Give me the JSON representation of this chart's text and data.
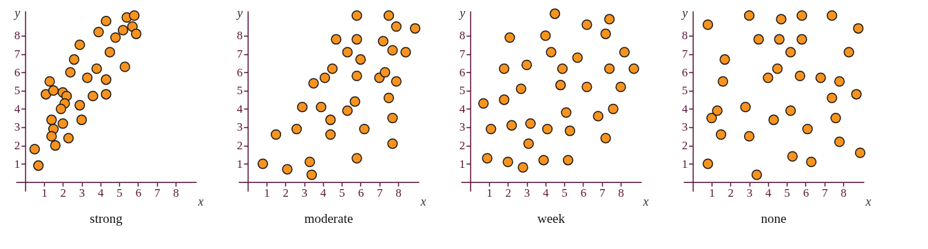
{
  "chart_data": [
    {
      "type": "scatter",
      "title": "strong",
      "xlabel": "x",
      "ylabel": "y",
      "color": "#f7931e",
      "marker": "circle",
      "xlim": [
        -0.5,
        9.1
      ],
      "ylim": [
        -0.5,
        9.35
      ],
      "xticks": [
        1,
        2,
        3,
        4,
        5,
        6,
        7,
        8
      ],
      "yticks": [
        1,
        2,
        3,
        4,
        5,
        6,
        7,
        8
      ],
      "x": [
        0.5,
        0.7,
        1.1,
        1.3,
        1.5,
        1.4,
        1.5,
        1.4,
        1.6,
        2.0,
        2.2,
        2.1,
        1.9,
        2.0,
        2.3,
        2.4,
        2.6,
        2.9,
        2.9,
        3.0,
        3.3,
        3.6,
        3.8,
        3.9,
        4.3,
        4.3,
        4.3,
        4.5,
        4.8,
        5.2,
        5.3,
        5.4,
        5.8,
        5.7,
        5.9
      ],
      "values": [
        1.8,
        0.9,
        4.8,
        5.5,
        5.0,
        3.4,
        2.9,
        2.5,
        2.0,
        4.9,
        4.7,
        4.3,
        4.0,
        3.2,
        2.4,
        6.0,
        6.7,
        7.5,
        4.2,
        3.4,
        5.7,
        4.7,
        6.2,
        8.2,
        8.8,
        5.6,
        4.8,
        7.1,
        7.9,
        8.3,
        6.3,
        9.0,
        9.1,
        8.5,
        8.1
      ]
    },
    {
      "type": "scatter",
      "title": "moderate",
      "xlabel": "x",
      "ylabel": "y",
      "color": "#f7931e",
      "marker": "circle",
      "xlim": [
        -0.5,
        9.1
      ],
      "ylim": [
        -0.5,
        9.35
      ],
      "xticks": [
        1,
        2,
        3,
        4,
        5,
        6,
        7,
        8
      ],
      "yticks": [
        1,
        2,
        3,
        4,
        5,
        6,
        7,
        8
      ],
      "x": [
        0.8,
        1.5,
        2.1,
        2.6,
        2.9,
        3.3,
        3.4,
        3.5,
        4.1,
        3.9,
        4.4,
        4.4,
        4.5,
        4.7,
        5.3,
        5.3,
        5.7,
        5.8,
        5.8,
        5.8,
        6.0,
        5.8,
        6.2,
        7.0,
        7.3,
        7.2,
        7.5,
        7.7,
        7.5,
        7.9,
        7.9,
        7.7,
        7.7,
        8.4,
        8.9
      ],
      "values": [
        1.0,
        2.6,
        0.7,
        2.9,
        4.1,
        1.1,
        0.4,
        5.4,
        5.7,
        4.1,
        3.4,
        2.6,
        6.2,
        7.8,
        3.9,
        7.1,
        4.4,
        9.1,
        7.8,
        5.8,
        6.7,
        1.3,
        2.9,
        5.7,
        6.0,
        7.7,
        9.1,
        7.2,
        4.6,
        8.5,
        5.5,
        3.5,
        2.1,
        7.1,
        8.4
      ]
    },
    {
      "type": "scatter",
      "title": "week",
      "xlabel": "x",
      "ylabel": "y",
      "color": "#f7931e",
      "marker": "circle",
      "xlim": [
        -0.5,
        9.1
      ],
      "ylim": [
        -0.5,
        9.35
      ],
      "xticks": [
        1,
        2,
        3,
        4,
        5,
        6,
        7,
        8
      ],
      "yticks": [
        1,
        2,
        3,
        4,
        5,
        6,
        7,
        8
      ],
      "x": [
        0.7,
        1.1,
        0.9,
        1.8,
        1.8,
        2.1,
        2.2,
        2.0,
        2.7,
        3.0,
        3.2,
        3.1,
        2.8,
        3.9,
        4.0,
        4.1,
        4.3,
        4.5,
        4.8,
        4.9,
        5.1,
        5.3,
        5.2,
        5.7,
        6.2,
        6.2,
        6.8,
        7.2,
        7.4,
        7.2,
        7.4,
        7.6,
        8.0,
        8.2,
        8.7
      ],
      "values": [
        4.3,
        2.9,
        1.3,
        4.5,
        6.2,
        7.9,
        3.1,
        1.1,
        5.1,
        6.4,
        3.2,
        2.1,
        0.8,
        1.2,
        8.0,
        2.9,
        7.1,
        9.2,
        5.3,
        6.2,
        3.8,
        2.8,
        1.2,
        6.8,
        8.6,
        5.2,
        3.6,
        8.1,
        8.9,
        2.4,
        6.2,
        4.0,
        5.2,
        7.1,
        6.2
      ]
    },
    {
      "type": "scatter",
      "title": "none",
      "xlabel": "x",
      "ylabel": "y",
      "color": "#f7931e",
      "marker": "circle",
      "xlim": [
        -0.5,
        9.1
      ],
      "ylim": [
        -0.5,
        9.35
      ],
      "xticks": [
        1,
        2,
        3,
        4,
        5,
        6,
        7,
        8
      ],
      "yticks": [
        1,
        2,
        3,
        4,
        5,
        6,
        7,
        8
      ],
      "x": [
        0.8,
        1.0,
        0.8,
        1.3,
        1.5,
        1.6,
        1.7,
        2.8,
        3.0,
        3.0,
        3.4,
        3.5,
        4.0,
        4.3,
        4.5,
        4.7,
        4.6,
        5.2,
        5.2,
        5.3,
        5.7,
        5.8,
        5.8,
        6.1,
        6.3,
        6.8,
        7.4,
        7.4,
        7.6,
        7.8,
        7.8,
        8.3,
        8.8,
        8.7,
        8.9
      ],
      "values": [
        8.6,
        3.5,
        1.0,
        3.9,
        2.6,
        5.5,
        6.7,
        4.1,
        9.1,
        2.5,
        0.4,
        7.8,
        5.7,
        3.4,
        6.2,
        8.9,
        7.8,
        7.1,
        3.9,
        1.4,
        5.8,
        9.1,
        7.8,
        2.9,
        1.1,
        5.7,
        9.1,
        4.6,
        3.5,
        5.5,
        2.2,
        7.1,
        8.4,
        4.8,
        1.6
      ]
    }
  ]
}
